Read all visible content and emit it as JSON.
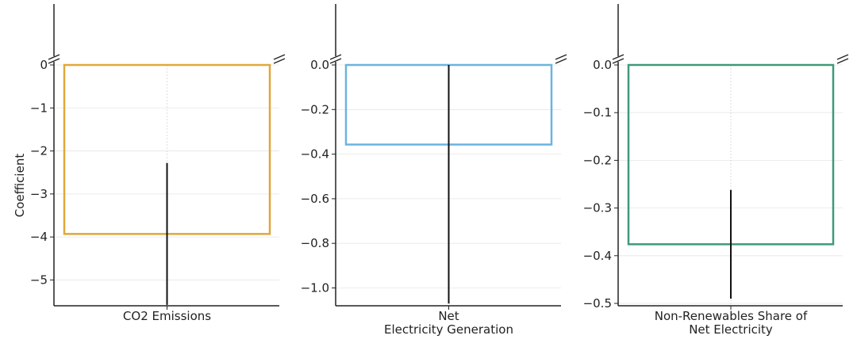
{
  "chart_data": [
    {
      "type": "bar",
      "ylabel": "Coefficient",
      "xlabel_lines": [
        "CO2 Emissions"
      ],
      "ylim": [
        -5.6,
        0
      ],
      "yticks": [
        0,
        -1,
        -2,
        -3,
        -4,
        -5
      ],
      "ytick_labels": [
        "0",
        "−1",
        "−2",
        "−3",
        "−4",
        "−5"
      ],
      "value": -3.93,
      "error_low": -5.58,
      "error_high": -2.28,
      "color": "#E0A83A",
      "grid": true,
      "axis_break": true
    },
    {
      "type": "bar",
      "xlabel_lines": [
        "Net",
        "Electricity Generation"
      ],
      "ylim": [
        -1.08,
        0
      ],
      "yticks": [
        0.0,
        -0.2,
        -0.4,
        -0.6,
        -0.8,
        -1.0
      ],
      "ytick_labels": [
        "0.0",
        "−0.2",
        "−0.4",
        "−0.6",
        "−0.8",
        "−1.0"
      ],
      "value": -0.357,
      "error_low": -1.07,
      "error_high": 0.0,
      "color": "#6BB3E0",
      "grid": true,
      "axis_break": true
    },
    {
      "type": "bar",
      "xlabel_lines": [
        "Non-Renewables Share of",
        "Net Electricity"
      ],
      "ylim": [
        -0.505,
        0
      ],
      "yticks": [
        0.0,
        -0.1,
        -0.2,
        -0.3,
        -0.4,
        -0.5
      ],
      "ytick_labels": [
        "0.0",
        "−0.1",
        "−0.2",
        "−0.3",
        "−0.4",
        "−0.5"
      ],
      "value": -0.376,
      "error_low": -0.49,
      "error_high": -0.262,
      "color": "#3E9A78",
      "grid": true,
      "axis_break": true
    }
  ]
}
